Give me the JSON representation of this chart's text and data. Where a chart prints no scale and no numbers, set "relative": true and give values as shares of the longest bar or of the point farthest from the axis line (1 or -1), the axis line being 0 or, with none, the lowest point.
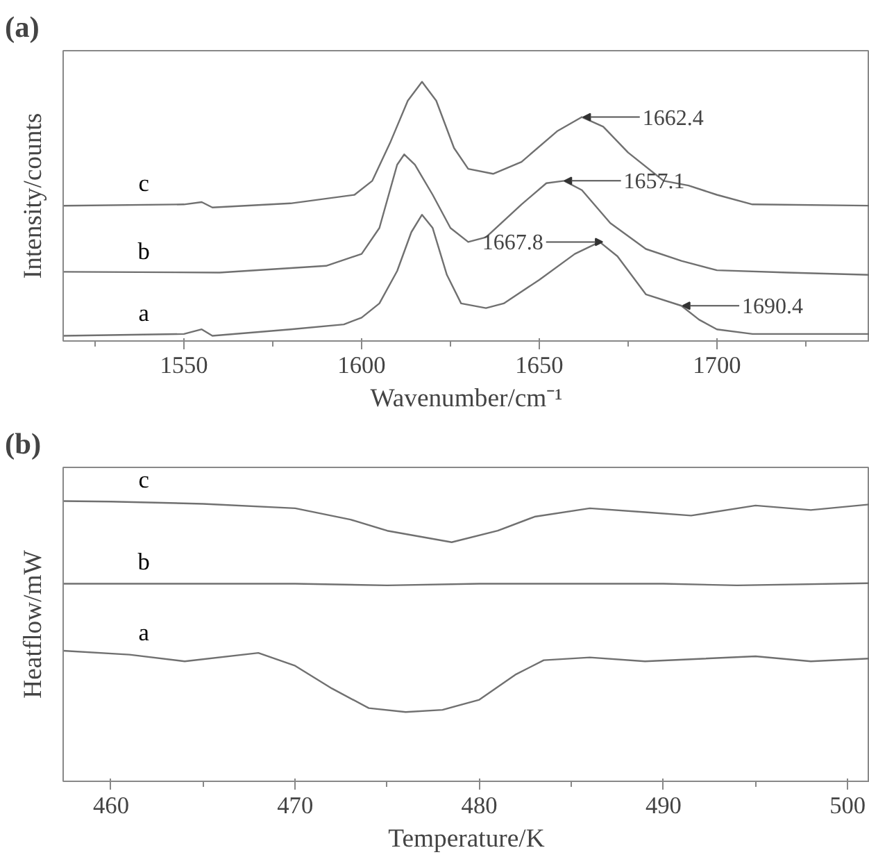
{
  "chart_data": [
    {
      "type": "line",
      "title": "(a)",
      "xlabel": "Wavenumber/cm⁻¹",
      "ylabel": "Intensity/counts",
      "relative": true,
      "tick_labels": "x",
      "xlim": [
        1516,
        1743
      ],
      "xticks": [
        1550,
        1600,
        1650,
        1700
      ],
      "series": [
        {
          "name": "a",
          "color": "#707070",
          "x": [
            1516,
            1550,
            1555,
            1558,
            1580,
            1595,
            1600,
            1605,
            1610,
            1614,
            1617,
            1620,
            1624,
            1628,
            1635,
            1640,
            1650,
            1660,
            1667,
            1672,
            1680,
            1690,
            1695,
            1700,
            1710,
            1743
          ],
          "values": [
            0.02,
            0.027,
            0.045,
            0.02,
            0.045,
            0.064,
            0.09,
            0.145,
            0.27,
            0.42,
            0.487,
            0.436,
            0.255,
            0.145,
            0.127,
            0.145,
            0.236,
            0.336,
            0.382,
            0.327,
            0.18,
            0.136,
            0.082,
            0.045,
            0.027,
            0.027
          ]
        },
        {
          "name": "b",
          "color": "#707070",
          "x": [
            1516,
            1560,
            1590,
            1600,
            1605,
            1610,
            1612,
            1615,
            1620,
            1625,
            1630,
            1635,
            1645,
            1652,
            1657,
            1662,
            1670,
            1680,
            1690,
            1700,
            1720,
            1743
          ],
          "values": [
            0.267,
            0.264,
            0.29,
            0.336,
            0.436,
            0.68,
            0.72,
            0.68,
            0.564,
            0.436,
            0.382,
            0.4,
            0.527,
            0.609,
            0.618,
            0.582,
            0.455,
            0.355,
            0.309,
            0.273,
            0.264,
            0.255
          ]
        },
        {
          "name": "c",
          "color": "#707070",
          "x": [
            1516,
            1550,
            1555,
            1558,
            1580,
            1598,
            1603,
            1608,
            1613,
            1617,
            1621,
            1626,
            1630,
            1637,
            1645,
            1655,
            1662,
            1668,
            1675,
            1685,
            1692,
            1700,
            1710,
            1743
          ],
          "values": [
            0.522,
            0.527,
            0.536,
            0.515,
            0.531,
            0.564,
            0.618,
            0.764,
            0.927,
            1.0,
            0.927,
            0.745,
            0.664,
            0.645,
            0.691,
            0.809,
            0.864,
            0.827,
            0.727,
            0.618,
            0.6,
            0.564,
            0.527,
            0.522
          ]
        }
      ],
      "annotations": [
        {
          "text": "1662.4",
          "x": 1662.4,
          "y": 0.864
        },
        {
          "text": "1657.1",
          "x": 1657.1,
          "y": 0.618
        },
        {
          "text": "1667.8",
          "x": 1667.8,
          "y": 0.382
        },
        {
          "text": "1690.4",
          "x": 1690.4,
          "y": 0.136
        }
      ]
    },
    {
      "type": "line",
      "title": "(b)",
      "xlabel": "Temperature/K",
      "ylabel": "Heatflow/mW",
      "relative": true,
      "tick_labels": "x",
      "xlim": [
        457.4,
        501.2
      ],
      "xticks": [
        460,
        470,
        480,
        490,
        500
      ],
      "series": [
        {
          "name": "a",
          "color": "#707070",
          "x": [
            457.4,
            461,
            464,
            468,
            470,
            472,
            474,
            476,
            478,
            480,
            482,
            483.5,
            486,
            489,
            495,
            498,
            501.2
          ],
          "values": [
            0.466,
            0.452,
            0.428,
            0.458,
            0.412,
            0.331,
            0.261,
            0.247,
            0.255,
            0.291,
            0.382,
            0.432,
            0.442,
            0.428,
            0.446,
            0.428,
            0.438
          ]
        },
        {
          "name": "b",
          "color": "#707070",
          "x": [
            457.4,
            460,
            470,
            475,
            480,
            490,
            494,
            501.2
          ],
          "values": [
            0.705,
            0.705,
            0.705,
            0.699,
            0.705,
            0.705,
            0.699,
            0.707
          ]
        },
        {
          "name": "c",
          "color": "#707070",
          "x": [
            457.4,
            460,
            465,
            470,
            473,
            475,
            478.5,
            481,
            483,
            486,
            489,
            491.5,
            495,
            498,
            501.2
          ],
          "values": [
            1.0,
            0.998,
            0.99,
            0.974,
            0.934,
            0.894,
            0.853,
            0.894,
            0.944,
            0.974,
            0.96,
            0.948,
            0.984,
            0.968,
            0.988
          ]
        }
      ]
    }
  ]
}
